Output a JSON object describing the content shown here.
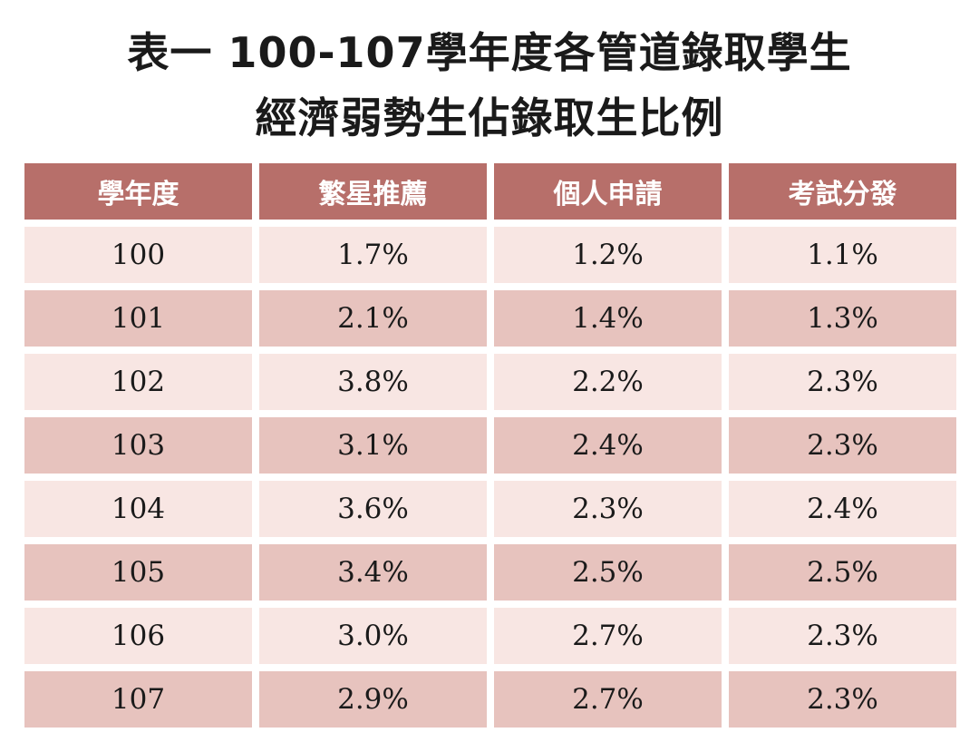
{
  "title": {
    "line1": "表一  100-107學年度各管道錄取學生",
    "line2": "經濟弱勢生佔錄取生比例"
  },
  "table": {
    "headers": [
      "學年度",
      "繁星推薦",
      "個人申請",
      "考試分發"
    ],
    "rows": [
      [
        "100",
        "1.7%",
        "1.2%",
        "1.1%"
      ],
      [
        "101",
        "2.1%",
        "1.4%",
        "1.3%"
      ],
      [
        "102",
        "3.8%",
        "2.2%",
        "2.3%"
      ],
      [
        "103",
        "3.1%",
        "2.4%",
        "2.3%"
      ],
      [
        "104",
        "3.6%",
        "2.3%",
        "2.4%"
      ],
      [
        "105",
        "3.4%",
        "2.5%",
        "2.5%"
      ],
      [
        "106",
        "3.0%",
        "2.7%",
        "2.3%"
      ],
      [
        "107",
        "2.9%",
        "2.7%",
        "2.3%"
      ]
    ]
  },
  "colors": {
    "header_bg": "#b76f6a",
    "row_light": "#f8e6e3",
    "row_dark": "#e7c3be"
  }
}
